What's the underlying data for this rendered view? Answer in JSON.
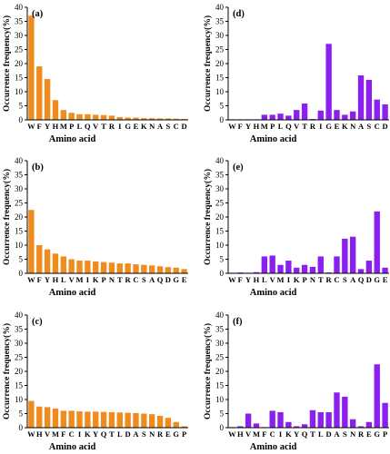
{
  "colors": {
    "orange": "#f08c1e",
    "purple": "#8a1ff0"
  },
  "chart_data": [
    {
      "type": "bar",
      "panel_label": "(a)",
      "color_key": "orange",
      "categories": [
        "W",
        "F",
        "Y",
        "H",
        "M",
        "P",
        "L",
        "Q",
        "V",
        "T",
        "R",
        "I",
        "G",
        "E",
        "K",
        "N",
        "A",
        "S",
        "C",
        "D"
      ],
      "values": [
        37,
        19,
        14.5,
        7,
        3.5,
        2.5,
        2,
        2,
        1.8,
        1.7,
        1.5,
        1,
        0.8,
        0.8,
        0.6,
        0.6,
        0.5,
        0.5,
        0.4,
        0.3
      ],
      "xlabel": "Amino acid",
      "ylabel": "Occurrence frequency(%)",
      "ylim": [
        0,
        40
      ],
      "yticks": [
        0,
        5,
        10,
        15,
        20,
        25,
        30,
        35,
        40
      ]
    },
    {
      "type": "bar",
      "panel_label": "(d)",
      "color_key": "purple",
      "categories": [
        "W",
        "F",
        "Y",
        "H",
        "M",
        "P",
        "L",
        "Q",
        "V",
        "T",
        "R",
        "I",
        "G",
        "E",
        "K",
        "N",
        "A",
        "S",
        "C",
        "D"
      ],
      "values": [
        0.2,
        0.2,
        0.2,
        0.2,
        1.8,
        1.8,
        2.2,
        1.5,
        3.5,
        5.8,
        0.3,
        3.3,
        27,
        3.5,
        1.8,
        3,
        15.8,
        14.2,
        7.2,
        5.5
      ],
      "xlabel": "Amino acid",
      "ylabel": "Occurrence frequency(%)",
      "ylim": [
        0,
        40
      ],
      "yticks": [
        0,
        5,
        10,
        15,
        20,
        25,
        30,
        35,
        40
      ]
    },
    {
      "type": "bar",
      "panel_label": "(b)",
      "color_key": "orange",
      "categories": [
        "W",
        "F",
        "Y",
        "H",
        "L",
        "V",
        "M",
        "I",
        "K",
        "P",
        "N",
        "T",
        "R",
        "C",
        "S",
        "A",
        "Q",
        "D",
        "G",
        "E"
      ],
      "values": [
        22.5,
        10,
        8.5,
        7,
        6,
        5,
        4.5,
        4.5,
        4.2,
        4,
        3.8,
        3.5,
        3.5,
        3.2,
        3,
        2.8,
        2.5,
        2.2,
        2,
        1.5
      ],
      "xlabel": "Amino acid",
      "ylabel": "Occurrence frequency(%)",
      "ylim": [
        0,
        40
      ],
      "yticks": [
        0,
        5,
        10,
        15,
        20,
        25,
        30,
        35,
        40
      ]
    },
    {
      "type": "bar",
      "panel_label": "(e)",
      "color_key": "purple",
      "categories": [
        "W",
        "F",
        "Y",
        "H",
        "L",
        "V",
        "M",
        "I",
        "K",
        "P",
        "N",
        "T",
        "R",
        "C",
        "S",
        "A",
        "Q",
        "D",
        "G",
        "E"
      ],
      "values": [
        0.2,
        0.3,
        0.2,
        0.4,
        6,
        6.3,
        3,
        4.5,
        2,
        3,
        2.3,
        6,
        0.3,
        6,
        12.3,
        13,
        1.5,
        4.5,
        22,
        2
      ],
      "xlabel": "Amino acid",
      "ylabel": "Occurrence frequency(%)",
      "ylim": [
        0,
        40
      ],
      "yticks": [
        0,
        5,
        10,
        15,
        20,
        25,
        30,
        35,
        40
      ]
    },
    {
      "type": "bar",
      "panel_label": "(c)",
      "color_key": "orange",
      "categories": [
        "W",
        "H",
        "V",
        "M",
        "F",
        "C",
        "I",
        "K",
        "Y",
        "Q",
        "T",
        "L",
        "D",
        "A",
        "S",
        "N",
        "R",
        "E",
        "G",
        "P"
      ],
      "values": [
        9.5,
        7.5,
        7.3,
        6.8,
        6,
        6,
        5.8,
        5.7,
        5.7,
        5.6,
        5.5,
        5.4,
        5.3,
        5.2,
        5,
        4.8,
        4.2,
        3.5,
        2,
        0.5
      ],
      "xlabel": "Amino acid",
      "ylabel": "Occurrence frequency(%)",
      "ylim": [
        0,
        40
      ],
      "yticks": [
        0,
        5,
        10,
        15,
        20,
        25,
        30,
        35,
        40
      ]
    },
    {
      "type": "bar",
      "panel_label": "(f)",
      "color_key": "purple",
      "categories": [
        "W",
        "H",
        "V",
        "M",
        "F",
        "C",
        "I",
        "K",
        "Y",
        "Q",
        "T",
        "L",
        "D",
        "A",
        "S",
        "N",
        "R",
        "E",
        "G",
        "P"
      ],
      "values": [
        0.2,
        0.5,
        5,
        1.5,
        0.2,
        6,
        5.5,
        2,
        0.5,
        1.2,
        6.2,
        5.5,
        5.5,
        12.5,
        11,
        3,
        0.5,
        2,
        22.5,
        8.8
      ],
      "xlabel": "Amino acid",
      "ylabel": "Occurrence frequency(%)",
      "ylim": [
        0,
        40
      ],
      "yticks": [
        0,
        5,
        10,
        15,
        20,
        25,
        30,
        35,
        40
      ]
    }
  ]
}
